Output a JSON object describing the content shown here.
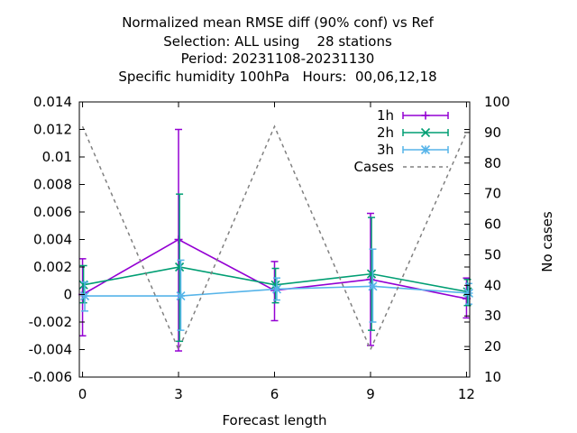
{
  "chart_data": {
    "type": "line",
    "title_lines": [
      "Normalized mean RMSE diff (90% conf) vs Ref",
      "Selection: ALL using    28 stations",
      "Period: 20231108-20231130",
      "Specific humidity 100hPa   Hours:  00,06,12,18"
    ],
    "xlabel": "Forecast length",
    "ylabel": "",
    "y2label": "No cases",
    "xlim": [
      -0.1,
      12.1
    ],
    "ylim": [
      -0.006,
      0.014
    ],
    "y2lim": [
      10,
      100
    ],
    "xticks": [
      0,
      3,
      6,
      9,
      12
    ],
    "yticks": [
      -0.006,
      -0.004,
      -0.002,
      0,
      0.002,
      0.004,
      0.006,
      0.008,
      0.01,
      0.012,
      0.014
    ],
    "ytick_labels": [
      "-0.006",
      "-0.004",
      "-0.002",
      "0",
      "0.002",
      "0.004",
      "0.006",
      "0.008",
      "0.01",
      "0.012",
      "0.014"
    ],
    "y2ticks": [
      10,
      20,
      30,
      40,
      50,
      60,
      70,
      80,
      90,
      100
    ],
    "legend_position": "top-right",
    "series": [
      {
        "name": "1h",
        "color": "#9400d3",
        "x": [
          0,
          3,
          6,
          9,
          12
        ],
        "y": [
          0.0,
          0.004,
          0.0003,
          0.0011,
          -0.0003
        ],
        "err_low": [
          -0.003,
          -0.0041,
          -0.0019,
          -0.0037,
          -0.0017
        ],
        "err_high": [
          0.0026,
          0.012,
          0.0024,
          0.0059,
          0.0012
        ],
        "marker": "plus",
        "x_offset": 0
      },
      {
        "name": "2h",
        "color": "#009e73",
        "x": [
          0,
          3,
          6,
          9,
          12
        ],
        "y": [
          0.0007,
          0.002,
          0.0007,
          0.0015,
          0.0002
        ],
        "err_low": [
          -0.0006,
          -0.0034,
          -0.0006,
          -0.0026,
          -0.0008
        ],
        "err_high": [
          0.0021,
          0.0073,
          0.0019,
          0.0056,
          0.0011
        ],
        "marker": "x",
        "x_offset": 0.03
      },
      {
        "name": "3h",
        "color": "#56b4e9",
        "x": [
          0,
          3,
          6,
          9,
          12
        ],
        "y": [
          -0.0001,
          -0.0001,
          0.0004,
          0.0006,
          0.0001
        ],
        "err_low": [
          -0.0012,
          -0.0026,
          -0.0004,
          -0.002,
          -0.0007
        ],
        "err_high": [
          0.0009,
          0.0025,
          0.0012,
          0.0033,
          0.0008
        ],
        "marker": "star",
        "x_offset": 0.07
      },
      {
        "name": "Cases",
        "color": "#808080",
        "axis": "y2",
        "dashed": true,
        "x": [
          0,
          3,
          6,
          9,
          12
        ],
        "y": [
          92,
          19,
          92,
          19,
          90
        ]
      }
    ]
  }
}
